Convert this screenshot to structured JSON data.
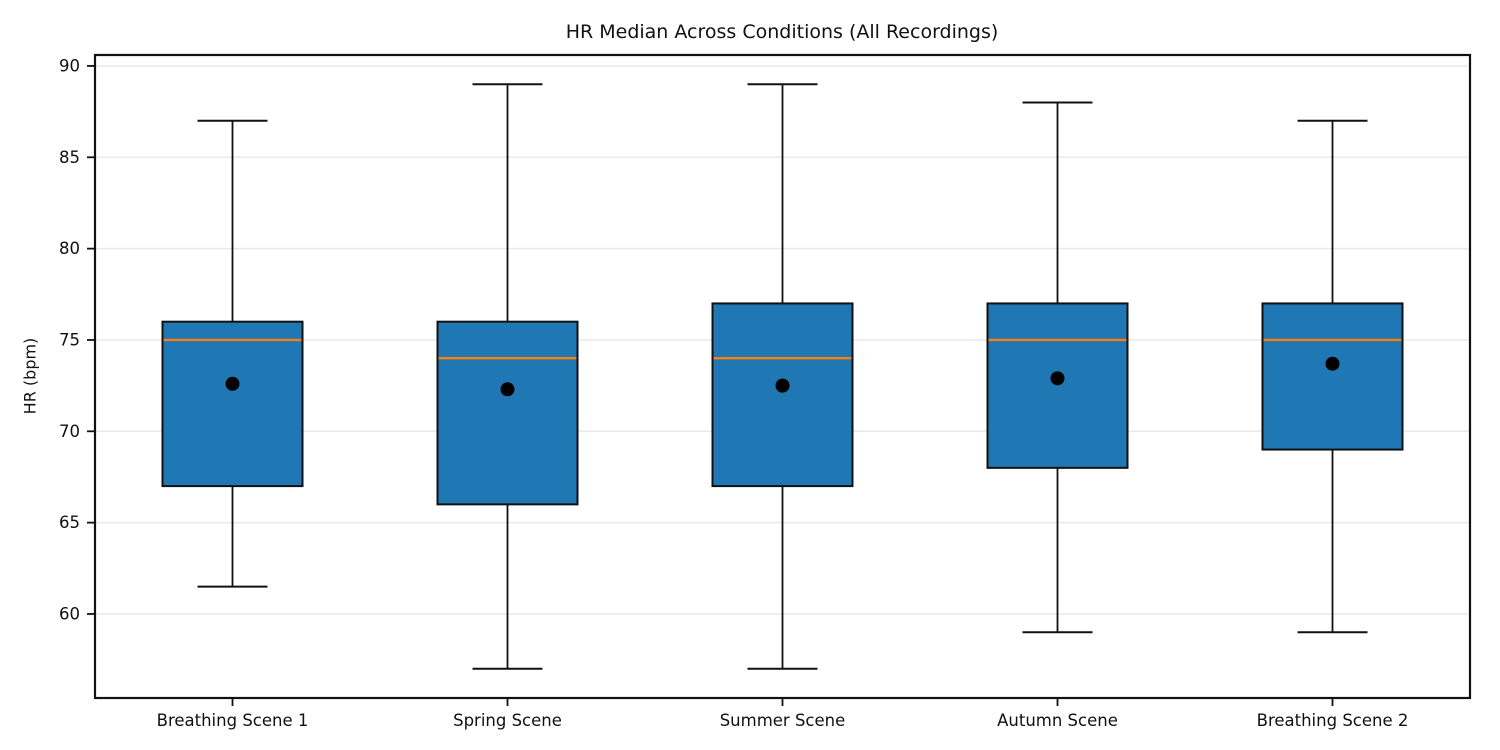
{
  "title": "HR Median Across Conditions (All Recordings)",
  "colors": {
    "box_fill": "#1f77b4",
    "median_line": "#ff7f0e",
    "mean_dot": "#000000",
    "box_line": "#111111",
    "grid_line": "#e9e9e9",
    "background": "#ffffff"
  },
  "chart_data": {
    "type": "boxplot",
    "title": "HR Median Across Conditions (All Recordings)",
    "xlabel": "",
    "ylabel": "HR (bpm)",
    "categories": [
      "Breathing Scene 1",
      "Spring Scene",
      "Summer Scene",
      "Autumn Scene",
      "Breathing Scene 2"
    ],
    "yticks": [
      60,
      65,
      70,
      75,
      80,
      85,
      90
    ],
    "ylim": [
      55.4,
      90.6
    ],
    "grid": "horizontal",
    "legend": "none",
    "series": [
      {
        "label": "Breathing Scene 1",
        "whisker_low": 61.5,
        "q1": 67,
        "median": 75,
        "q3": 76,
        "whisker_high": 87,
        "mean": 72.6
      },
      {
        "label": "Spring Scene",
        "whisker_low": 57,
        "q1": 66,
        "median": 74,
        "q3": 76,
        "whisker_high": 89,
        "mean": 72.3
      },
      {
        "label": "Summer Scene",
        "whisker_low": 57,
        "q1": 67,
        "median": 74,
        "q3": 77,
        "whisker_high": 89,
        "mean": 72.5
      },
      {
        "label": "Autumn Scene",
        "whisker_low": 59,
        "q1": 68,
        "median": 75,
        "q3": 77,
        "whisker_high": 88,
        "mean": 72.9
      },
      {
        "label": "Breathing Scene 2",
        "whisker_low": 59,
        "q1": 69,
        "median": 75,
        "q3": 77,
        "whisker_high": 87,
        "mean": 73.7
      }
    ]
  }
}
